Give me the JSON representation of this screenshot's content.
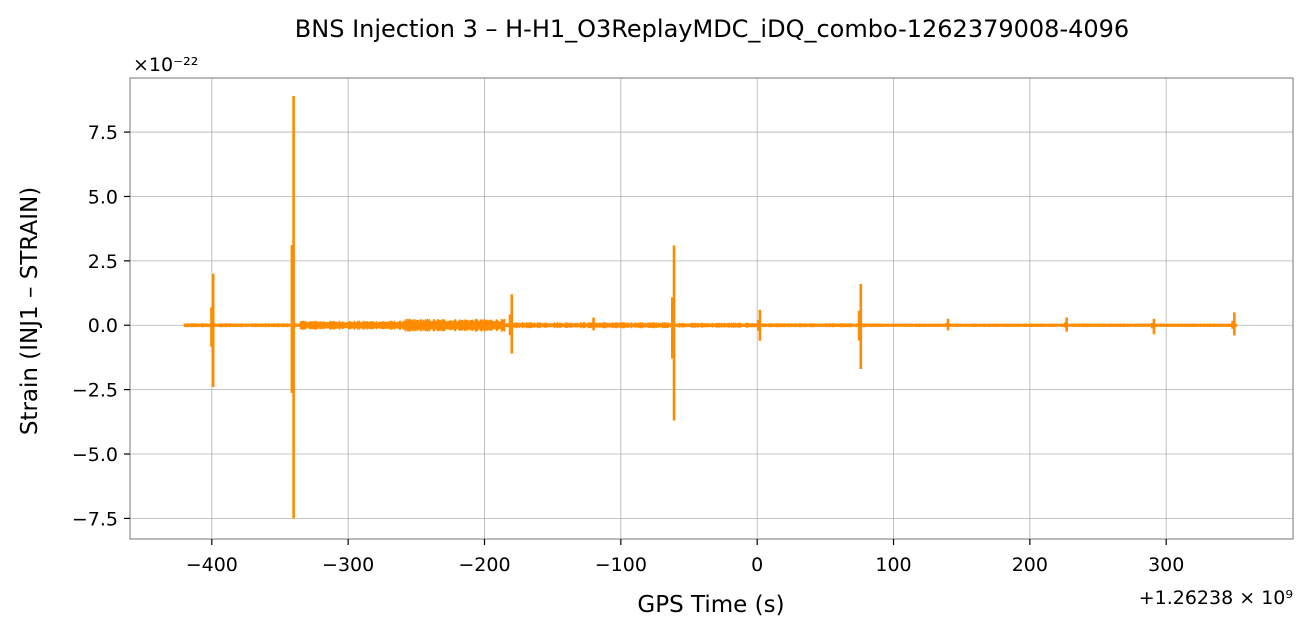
{
  "chart_data": {
    "type": "line",
    "title": "BNS Injection 3 – H-H1_O3ReplayMDC_iDQ_combo-1262379008-4096",
    "xlabel": "GPS Time (s)",
    "ylabel": "Strain (INJ1 – STRAIN)",
    "x_offset_text": "+1.26238 × 10⁹",
    "y_scale_text": "×10⁻²²",
    "xlim": [
      -460,
      393
    ],
    "ylim": [
      -8.3,
      9.6
    ],
    "x_ticks": [
      -400,
      -300,
      -200,
      -100,
      0,
      100,
      200,
      300
    ],
    "x_tick_labels": [
      "−400",
      "−300",
      "−200",
      "−100",
      "0",
      "100",
      "200",
      "300"
    ],
    "y_ticks": [
      -7.5,
      -5.0,
      -2.5,
      0.0,
      2.5,
      5.0,
      7.5
    ],
    "y_tick_labels": [
      "−7.5",
      "−5.0",
      "−2.5",
      "0.0",
      "2.5",
      "5.0",
      "7.5"
    ],
    "grid": true,
    "line_color": "#ff8c00",
    "series": [
      {
        "x_range": [
          -420,
          352
        ],
        "baseline_noise": [
          {
            "x": [
              -420,
              -345
            ],
            "amp": 0.08
          },
          {
            "x": [
              -335,
              -260
            ],
            "amp": 0.18
          },
          {
            "x": [
              -260,
              -185
            ],
            "amp": 0.25
          },
          {
            "x": [
              -178,
              -65
            ],
            "amp": 0.12
          },
          {
            "x": [
              -58,
              2
            ],
            "amp": 0.1
          },
          {
            "x": [
              5,
              75
            ],
            "amp": 0.08
          },
          {
            "x": [
              80,
              352
            ],
            "amp": 0.07
          }
        ],
        "spikes": [
          {
            "x": -399,
            "max": 2.0,
            "min": -2.4
          },
          {
            "x": -340,
            "max": 8.9,
            "min": -7.5
          },
          {
            "x": -180,
            "max": 1.2,
            "min": -1.1
          },
          {
            "x": -120,
            "max": 0.3,
            "min": -0.2
          },
          {
            "x": -61,
            "max": 3.1,
            "min": -3.7
          },
          {
            "x": 2,
            "max": 0.6,
            "min": -0.6
          },
          {
            "x": 76,
            "max": 1.6,
            "min": -1.7
          },
          {
            "x": 140,
            "max": 0.25,
            "min": -0.2
          },
          {
            "x": 227,
            "max": 0.3,
            "min": -0.25
          },
          {
            "x": 291,
            "max": 0.25,
            "min": -0.35
          },
          {
            "x": 350,
            "max": 0.5,
            "min": -0.4
          }
        ]
      }
    ]
  }
}
